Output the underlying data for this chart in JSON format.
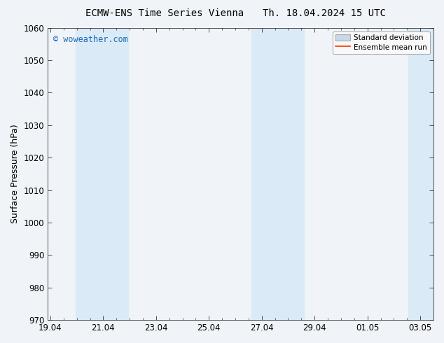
{
  "title_left": "ECMW-ENS Time Series Vienna",
  "title_right": "Th. 18.04.2024 15 UTC",
  "ylabel": "Surface Pressure (hPa)",
  "ylim": [
    970,
    1060
  ],
  "yticks": [
    970,
    980,
    990,
    1000,
    1010,
    1020,
    1030,
    1040,
    1050,
    1060
  ],
  "xtick_labels": [
    "19.04",
    "21.04",
    "23.04",
    "25.04",
    "27.04",
    "29.04",
    "01.05",
    "03.05"
  ],
  "xtick_positions": [
    0,
    2,
    4,
    6,
    8,
    10,
    12,
    14
  ],
  "xlim": [
    -0.1,
    14.5
  ],
  "shaded_bands": [
    {
      "xmin": 0.95,
      "xmax": 2.95
    },
    {
      "xmin": 7.6,
      "xmax": 9.6
    },
    {
      "xmin": 13.55,
      "xmax": 14.5
    }
  ],
  "shaded_color": "#daeaf7",
  "background_color": "#f0f4f8",
  "plot_bg_color": "#f0f4f8",
  "watermark": "© woweather.com",
  "watermark_color": "#1a6ab5",
  "legend_std_color": "#c8d8e8",
  "legend_std_edge": "#aaaaaa",
  "legend_mean_color": "#ff3300",
  "title_fontsize": 10,
  "axis_fontsize": 9,
  "tick_fontsize": 8.5,
  "watermark_fontsize": 8.5
}
